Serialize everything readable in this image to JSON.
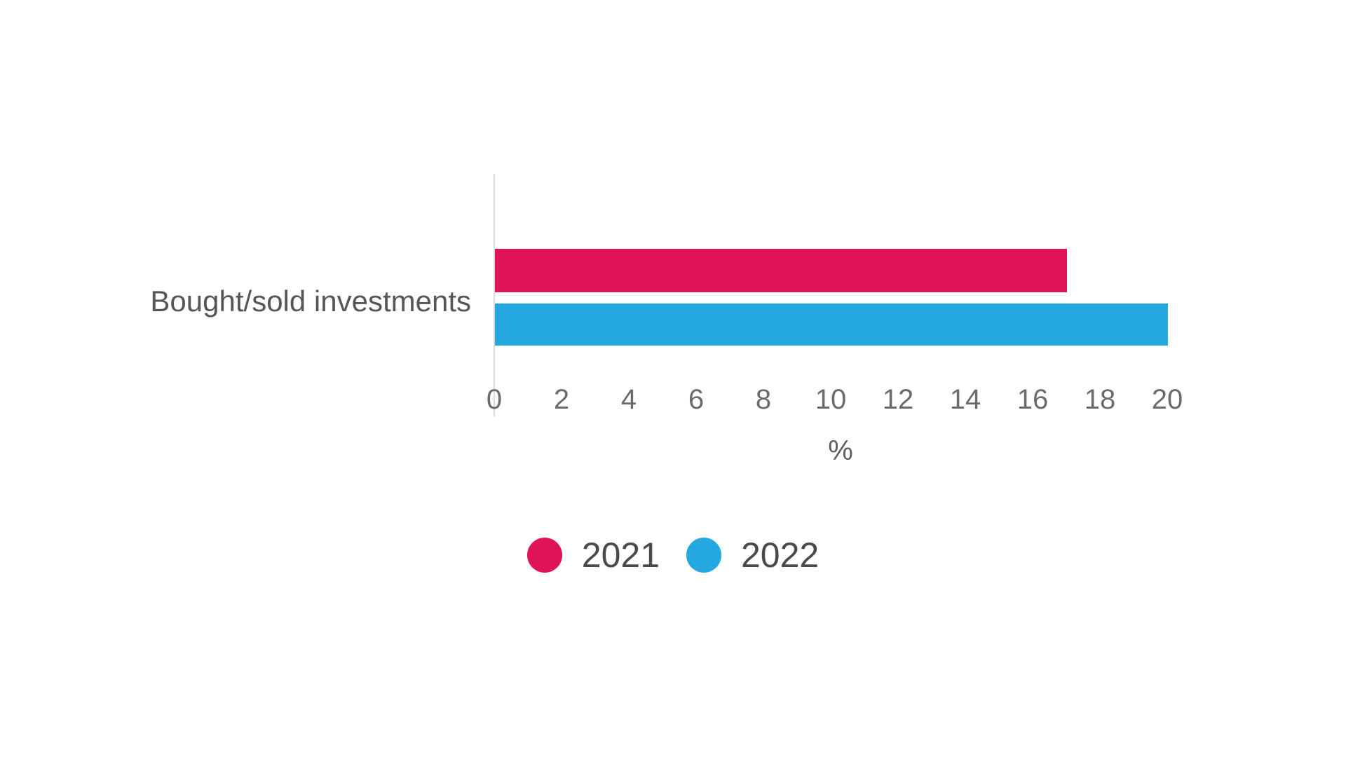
{
  "chart_data": {
    "type": "bar",
    "orientation": "horizontal",
    "title": "",
    "categories": [
      "Bought/sold investments"
    ],
    "series": [
      {
        "name": "2021",
        "color": "#e0135a",
        "values": [
          17
        ]
      },
      {
        "name": "2022",
        "color": "#25a8df",
        "values": [
          20
        ]
      }
    ],
    "xlabel": "%",
    "ylabel": "",
    "xlim": [
      0,
      20
    ],
    "xticks": [
      0,
      2,
      4,
      6,
      8,
      10,
      12,
      14,
      16,
      18,
      20
    ],
    "grid": false,
    "legend_position": "bottom-center",
    "axis_line_color": "#d9d9d9"
  }
}
